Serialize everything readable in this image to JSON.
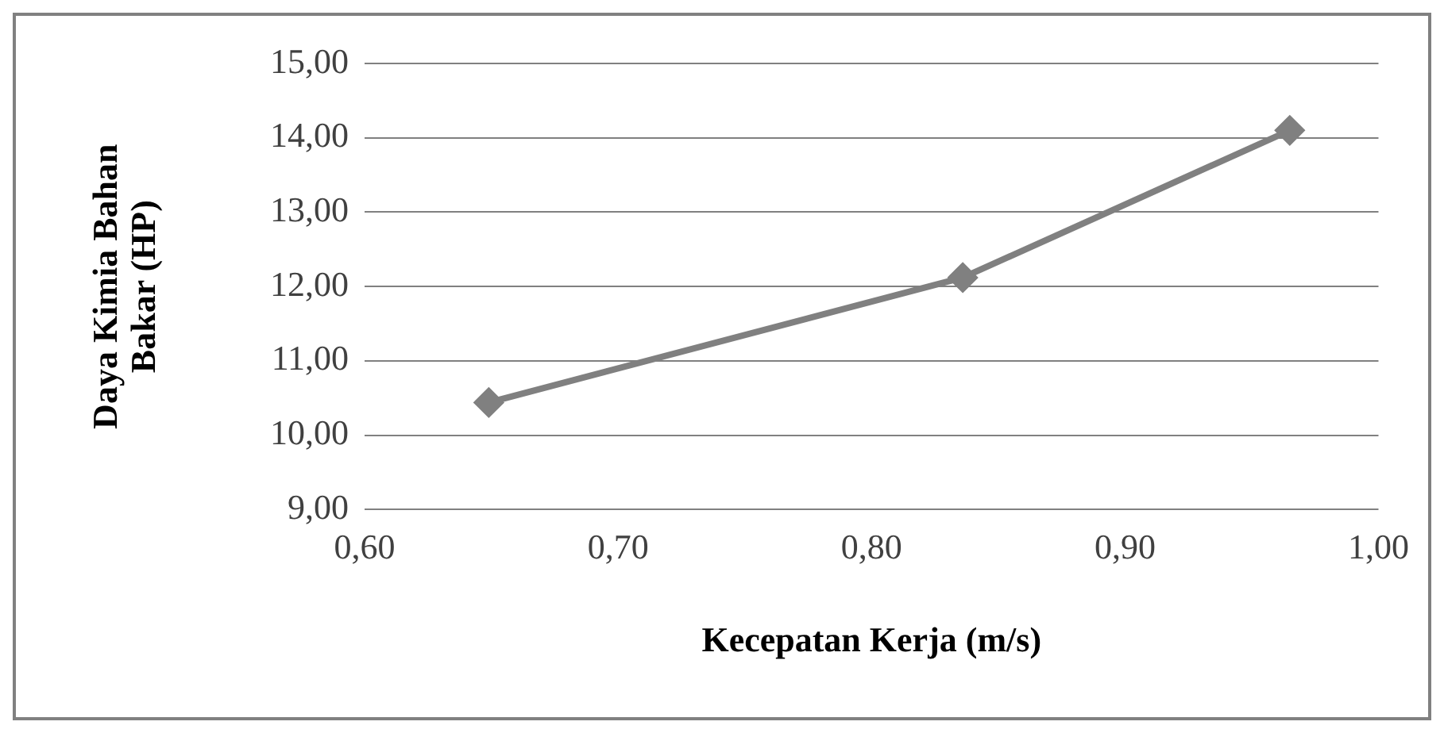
{
  "chart_data": {
    "type": "line",
    "xlabel": "Kecepatan Kerja (m/s)",
    "ylabel": "Daya Kimia Bahan Bakar (HP)",
    "x": [
      0.649,
      0.836,
      0.965
    ],
    "series": [
      {
        "color": "#808080",
        "values": [
          10.44,
          12.12,
          14.1
        ]
      }
    ],
    "xlim": [
      0.6,
      1.0
    ],
    "xticks": [
      {
        "value": 0.6,
        "label": "0,60"
      },
      {
        "value": 0.7,
        "label": "0,70"
      },
      {
        "value": 0.8,
        "label": "0,80"
      },
      {
        "value": 0.9,
        "label": "0,90"
      },
      {
        "value": 1.0,
        "label": "1,00"
      }
    ],
    "ylim": [
      9,
      15
    ],
    "yticks": [
      {
        "value": 9,
        "label": "9,00"
      },
      {
        "value": 10,
        "label": "10,00"
      },
      {
        "value": 11,
        "label": "11,00"
      },
      {
        "value": 12,
        "label": "12,00"
      },
      {
        "value": 13,
        "label": "13,00"
      },
      {
        "value": 14,
        "label": "14,00"
      },
      {
        "value": 15,
        "label": "15,00"
      }
    ],
    "grid": "y",
    "legend": false,
    "marker": "diamond",
    "line_style": "solid"
  }
}
